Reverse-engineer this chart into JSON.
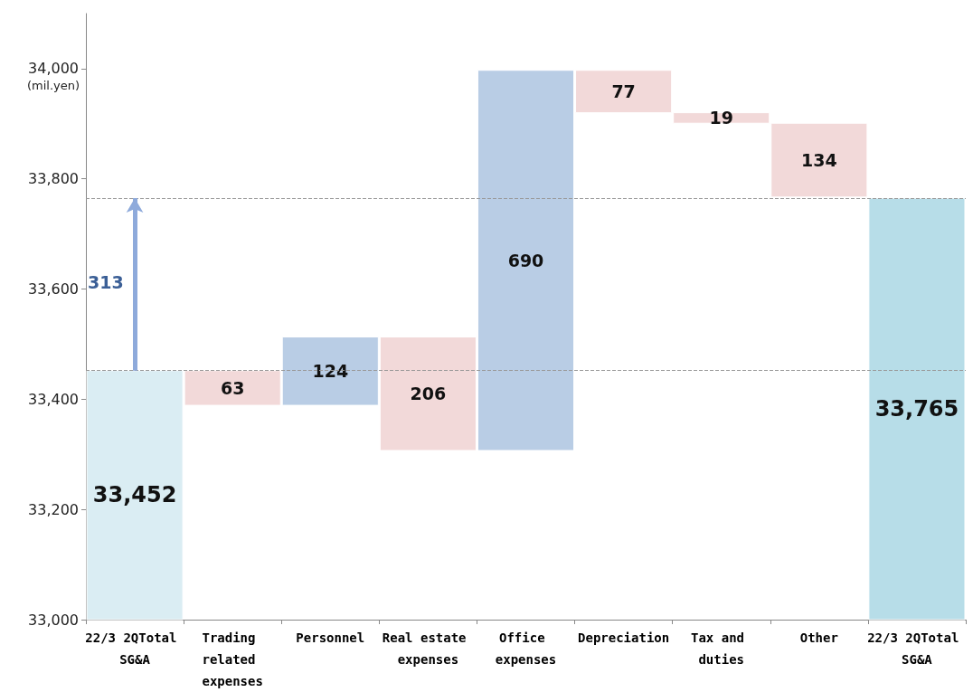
{
  "chart_data": {
    "type": "bar",
    "categories": [
      "22/3 2QTotal SG&A",
      "Trading related expenses",
      "Personnel",
      "Real estate expenses",
      "Office expenses",
      "Depreciation",
      "Tax and duties",
      "Other",
      "22/3 2QTotal SG&A"
    ],
    "base": [
      33000,
      33389,
      33389,
      33307,
      33307,
      33920,
      33901,
      33767,
      33000
    ],
    "values": [
      452,
      63,
      124,
      206,
      690,
      77,
      19,
      134,
      765
    ],
    "colors": [
      "#daedf3",
      "#f2d9d9",
      "#b9cde5",
      "#f2d9d9",
      "#b9cde5",
      "#f2d9d9",
      "#f2d9d9",
      "#f2d9d9",
      "#b7dde8"
    ],
    "value_labels": [
      "33,452",
      "63",
      "124",
      "206",
      "690",
      "77",
      "19",
      "134",
      "33,765"
    ],
    "ylabel": "(mil.yen)",
    "ylim": [
      33000,
      34100
    ],
    "yticks": [
      {
        "value": 33000,
        "label": "33,000"
      },
      {
        "value": 33200,
        "label": "33,200"
      },
      {
        "value": 33400,
        "label": "33,400"
      },
      {
        "value": 33600,
        "label": "33,600"
      },
      {
        "value": 33800,
        "label": "33,800"
      },
      {
        "value": 34000,
        "label": "34,000"
      }
    ],
    "ref_lines": [
      {
        "axis": "y",
        "value": 33452,
        "color": "#999999",
        "line_style": "dashed"
      },
      {
        "axis": "y",
        "value": 33765,
        "color": "#999999",
        "line_style": "dashed"
      }
    ],
    "annotations": [
      "313"
    ],
    "grid": false
  }
}
